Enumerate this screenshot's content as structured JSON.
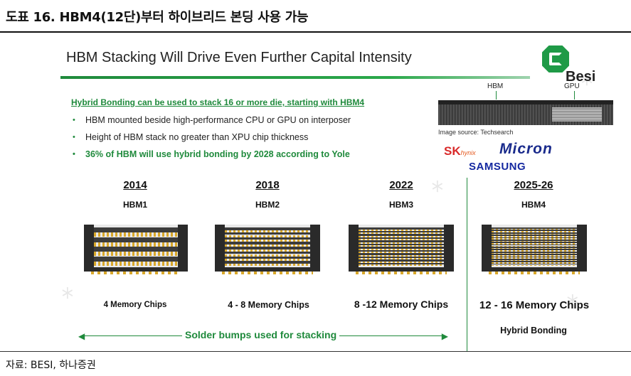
{
  "figure": {
    "title": "도표 16. HBM4(12단)부터 하이브리드 본딩 사용 가능",
    "source": "자료: BESI, 하나증권"
  },
  "slide": {
    "title": "HBM Stacking Will Drive Even Further Capital Intensity",
    "logo_text": "Besi",
    "bonding_heading": "Hybrid Bonding can be used to stack 16 or more die, starting with HBM4",
    "bullets": [
      "HBM mounted beside high-performance CPU or GPU on interposer",
      "Height of HBM stack no greater than XPU chip thickness",
      "36% of HBM will use hybrid bonding by 2028 according to Yole"
    ],
    "photo": {
      "label_hbm": "HBM",
      "label_gpu": "GPU",
      "source": "Image source: Techsearch"
    },
    "brands": {
      "sk": "SK",
      "sk_sub": "hynix",
      "micron": "Micron",
      "samsung": "SAMSUNG"
    },
    "generations": [
      {
        "year": "2014",
        "name": "HBM1",
        "chips": "4 Memory Chips",
        "layers": 4
      },
      {
        "year": "2018",
        "name": "HBM2",
        "chips": "4 - 8 Memory Chips",
        "layers": 8
      },
      {
        "year": "2022",
        "name": "HBM3",
        "chips": "8 -12 Memory Chips",
        "layers": 12
      },
      {
        "year": "2025-26",
        "name": "HBM4",
        "chips": "12 - 16 Memory Chips",
        "layers": 16,
        "note": "Hybrid Bonding"
      }
    ],
    "solder_label": "Solder bumps used for stacking",
    "accent_color": "#1f8a3c"
  }
}
